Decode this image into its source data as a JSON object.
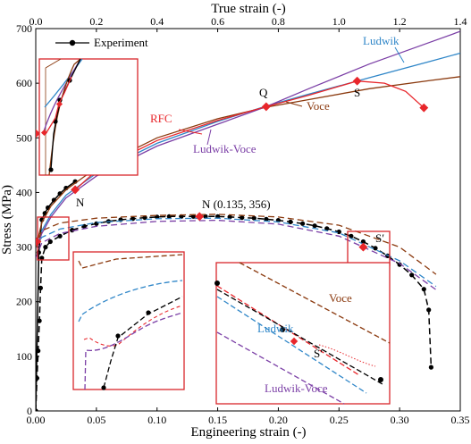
{
  "chart_data": {
    "type": "line",
    "xlabel_bottom": "Engineering strain (-)",
    "xlabel_top": "True strain (-)",
    "ylabel": "Stress (MPa)",
    "xlim_bottom": [
      0,
      0.35
    ],
    "xlim_top": [
      0,
      1.4
    ],
    "ylim": [
      0,
      700
    ],
    "x_ticks_bottom": [
      "0.00",
      "0.05",
      "0.10",
      "0.15",
      "0.20",
      "0.25",
      "0.30",
      "0.35"
    ],
    "x_ticks_top": [
      "0.0",
      "0.2",
      "0.4",
      "0.6",
      "0.8",
      "1.0",
      "1.2",
      "1.4"
    ],
    "y_ticks": [
      "0",
      "100",
      "200",
      "300",
      "400",
      "500",
      "600",
      "700"
    ],
    "legend": {
      "label": "Experiment",
      "placement": "top-left"
    },
    "colors": {
      "experiment": "#000000",
      "ludwik": "#2f86c8",
      "voce": "#8b3a0f",
      "ludwik_voce": "#7b3fa6",
      "rfc": "#e8262b",
      "inset_frame": "#d8262b"
    },
    "annotations": {
      "N_true": "N",
      "Q": "Q",
      "S": "S",
      "RFC": "RFC",
      "Ludwik": "Ludwik",
      "Voce": "Voce",
      "Ludwik_Voce": "Ludwik-Voce",
      "N_eng": "N (0.135, 356)",
      "S_prime": "S′"
    },
    "inset_labels": {
      "voce": "Voce",
      "ludwik": "Ludwik",
      "s_prime": "S′",
      "ludwik_voce": "Ludwik-Voce"
    },
    "series": [
      {
        "name": "Experiment",
        "axis": "top",
        "x": [
          0.0,
          0.01,
          0.02,
          0.03,
          0.04,
          0.06,
          0.08,
          0.1,
          0.13
        ],
        "values": [
          0,
          290,
          350,
          362,
          372,
          386,
          398,
          408,
          420
        ]
      },
      {
        "name": "Experiment",
        "axis": "bottom",
        "x": [
          0.0,
          0.001,
          0.002,
          0.003,
          0.004,
          0.005,
          0.008,
          0.012,
          0.02,
          0.03,
          0.04,
          0.05,
          0.06,
          0.07,
          0.08,
          0.09,
          0.1,
          0.11,
          0.12,
          0.13,
          0.14,
          0.15,
          0.16,
          0.17,
          0.18,
          0.19,
          0.2,
          0.21,
          0.22,
          0.23,
          0.24,
          0.25,
          0.26,
          0.27,
          0.28,
          0.29,
          0.3,
          0.31,
          0.32,
          0.324,
          0.326
        ],
        "values": [
          0,
          60,
          110,
          165,
          225,
          280,
          300,
          310,
          320,
          331,
          338,
          343,
          347,
          350,
          352,
          354,
          355,
          356,
          356,
          356,
          356,
          356,
          355,
          354,
          353,
          351,
          349,
          346,
          343,
          339,
          334,
          328,
          320,
          310,
          298,
          284,
          268,
          249,
          223,
          185,
          80
        ]
      },
      {
        "name": "Ludwik",
        "axis": "top",
        "x": [
          0.005,
          0.02,
          0.05,
          0.1,
          0.2,
          0.4,
          0.6,
          0.76,
          0.9,
          1.1,
          1.3,
          1.4
        ],
        "values": [
          300,
          330,
          360,
          395,
          435,
          490,
          530,
          558,
          580,
          610,
          640,
          655
        ]
      },
      {
        "name": "Voce",
        "axis": "top",
        "x": [
          0.005,
          0.02,
          0.05,
          0.1,
          0.2,
          0.4,
          0.6,
          0.76,
          0.9,
          1.1,
          1.3,
          1.4
        ],
        "values": [
          310,
          345,
          375,
          405,
          445,
          500,
          535,
          556,
          570,
          590,
          605,
          612
        ]
      },
      {
        "name": "Ludwik-Voce",
        "axis": "top",
        "x": [
          0.005,
          0.02,
          0.05,
          0.1,
          0.2,
          0.4,
          0.6,
          0.76,
          0.9,
          1.1,
          1.3,
          1.4
        ],
        "values": [
          300,
          325,
          355,
          390,
          430,
          485,
          525,
          557,
          590,
          635,
          675,
          695
        ]
      },
      {
        "name": "RFC",
        "axis": "top",
        "x": [
          0.13,
          0.2,
          0.4,
          0.6,
          0.76,
          0.9,
          1.06,
          1.15,
          1.22,
          1.28
        ],
        "values": [
          405,
          440,
          495,
          532,
          557,
          578,
          604,
          600,
          585,
          555
        ]
      },
      {
        "name": "Ludwik",
        "axis": "bottom",
        "x": [
          0.0,
          0.005,
          0.02,
          0.05,
          0.1,
          0.15,
          0.2,
          0.25,
          0.3,
          0.33
        ],
        "values": [
          300,
          318,
          333,
          345,
          352,
          353,
          346,
          326,
          275,
          228
        ]
      },
      {
        "name": "Voce",
        "axis": "bottom",
        "x": [
          0.0,
          0.005,
          0.02,
          0.05,
          0.1,
          0.15,
          0.2,
          0.25,
          0.3,
          0.33
        ],
        "values": [
          300,
          330,
          344,
          353,
          358,
          360,
          355,
          340,
          300,
          250
        ]
      },
      {
        "name": "Ludwik-Voce",
        "axis": "bottom",
        "x": [
          0.0,
          0.005,
          0.02,
          0.05,
          0.1,
          0.15,
          0.2,
          0.25,
          0.3,
          0.33
        ],
        "values": [
          280,
          308,
          325,
          338,
          347,
          349,
          342,
          320,
          270,
          222
        ]
      }
    ],
    "markers": [
      {
        "axis": "top",
        "x": 0.0,
        "y": 508
      },
      {
        "axis": "top",
        "x": 0.13,
        "y": 405
      },
      {
        "axis": "top",
        "x": 0.76,
        "y": 557
      },
      {
        "axis": "top",
        "x": 1.06,
        "y": 604
      },
      {
        "axis": "top",
        "x": 1.28,
        "y": 555
      },
      {
        "axis": "bottom",
        "x": 0.001,
        "y": 310
      },
      {
        "axis": "bottom",
        "x": 0.135,
        "y": 356
      },
      {
        "axis": "bottom",
        "x": 0.27,
        "y": 300
      }
    ]
  }
}
